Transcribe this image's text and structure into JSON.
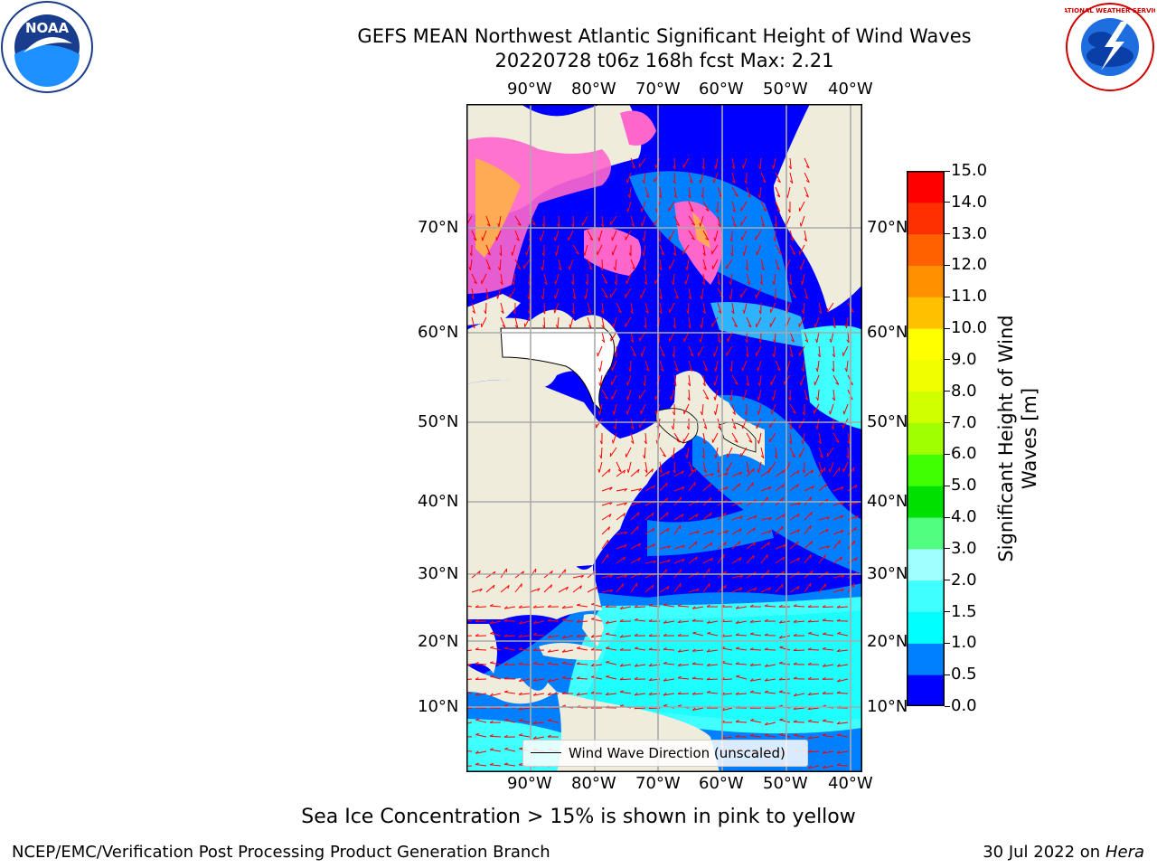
{
  "title": {
    "line1": "GEFS MEAN Northwest Atlantic Significant Height of Wind Waves",
    "line2": "20220728 t06z 168h fcst   Max: 2.21"
  },
  "logos": {
    "left": {
      "icon": "noaa-logo",
      "text": "NOAA"
    },
    "right": {
      "icon": "nws-logo",
      "text": "NATIONAL WEATHER SERVICE"
    }
  },
  "map": {
    "lon_ticks": [
      "90°W",
      "80°W",
      "70°W",
      "60°W",
      "50°W",
      "40°W"
    ],
    "lat_ticks": [
      "70°N",
      "60°N",
      "50°N",
      "40°N",
      "30°N",
      "20°N",
      "10°N"
    ],
    "legend": "Wind Wave Direction (unscaled)",
    "colors": {
      "land": "#efecdc",
      "ice": "#ff66cc",
      "arrow": "#ff0000",
      "grid": "#aaaaaa"
    }
  },
  "colorbar": {
    "label": "Significant Height of Wind Waves [m]",
    "ticks": [
      "0.0",
      "0.5",
      "1.0",
      "1.5",
      "2.0",
      "3.0",
      "4.0",
      "5.0",
      "6.0",
      "7.0",
      "8.0",
      "9.0",
      "10.0",
      "11.0",
      "12.0",
      "13.0",
      "14.0",
      "15.0"
    ],
    "colors": [
      "#0000ff",
      "#0080ff",
      "#00ffff",
      "#40ffff",
      "#a0ffff",
      "#50ff80",
      "#00e000",
      "#40ff00",
      "#a0ff00",
      "#d0ff00",
      "#f0ff00",
      "#ffff00",
      "#ffc000",
      "#ff9000",
      "#ff6000",
      "#ff3000",
      "#ff0000"
    ]
  },
  "note": "Sea Ice Concentration > 15% is shown in pink to yellow",
  "footer": {
    "left": "NCEP/EMC/Verification Post Processing Product Generation Branch",
    "date": "30 Jul 2022 on ",
    "machine": "Hera"
  }
}
